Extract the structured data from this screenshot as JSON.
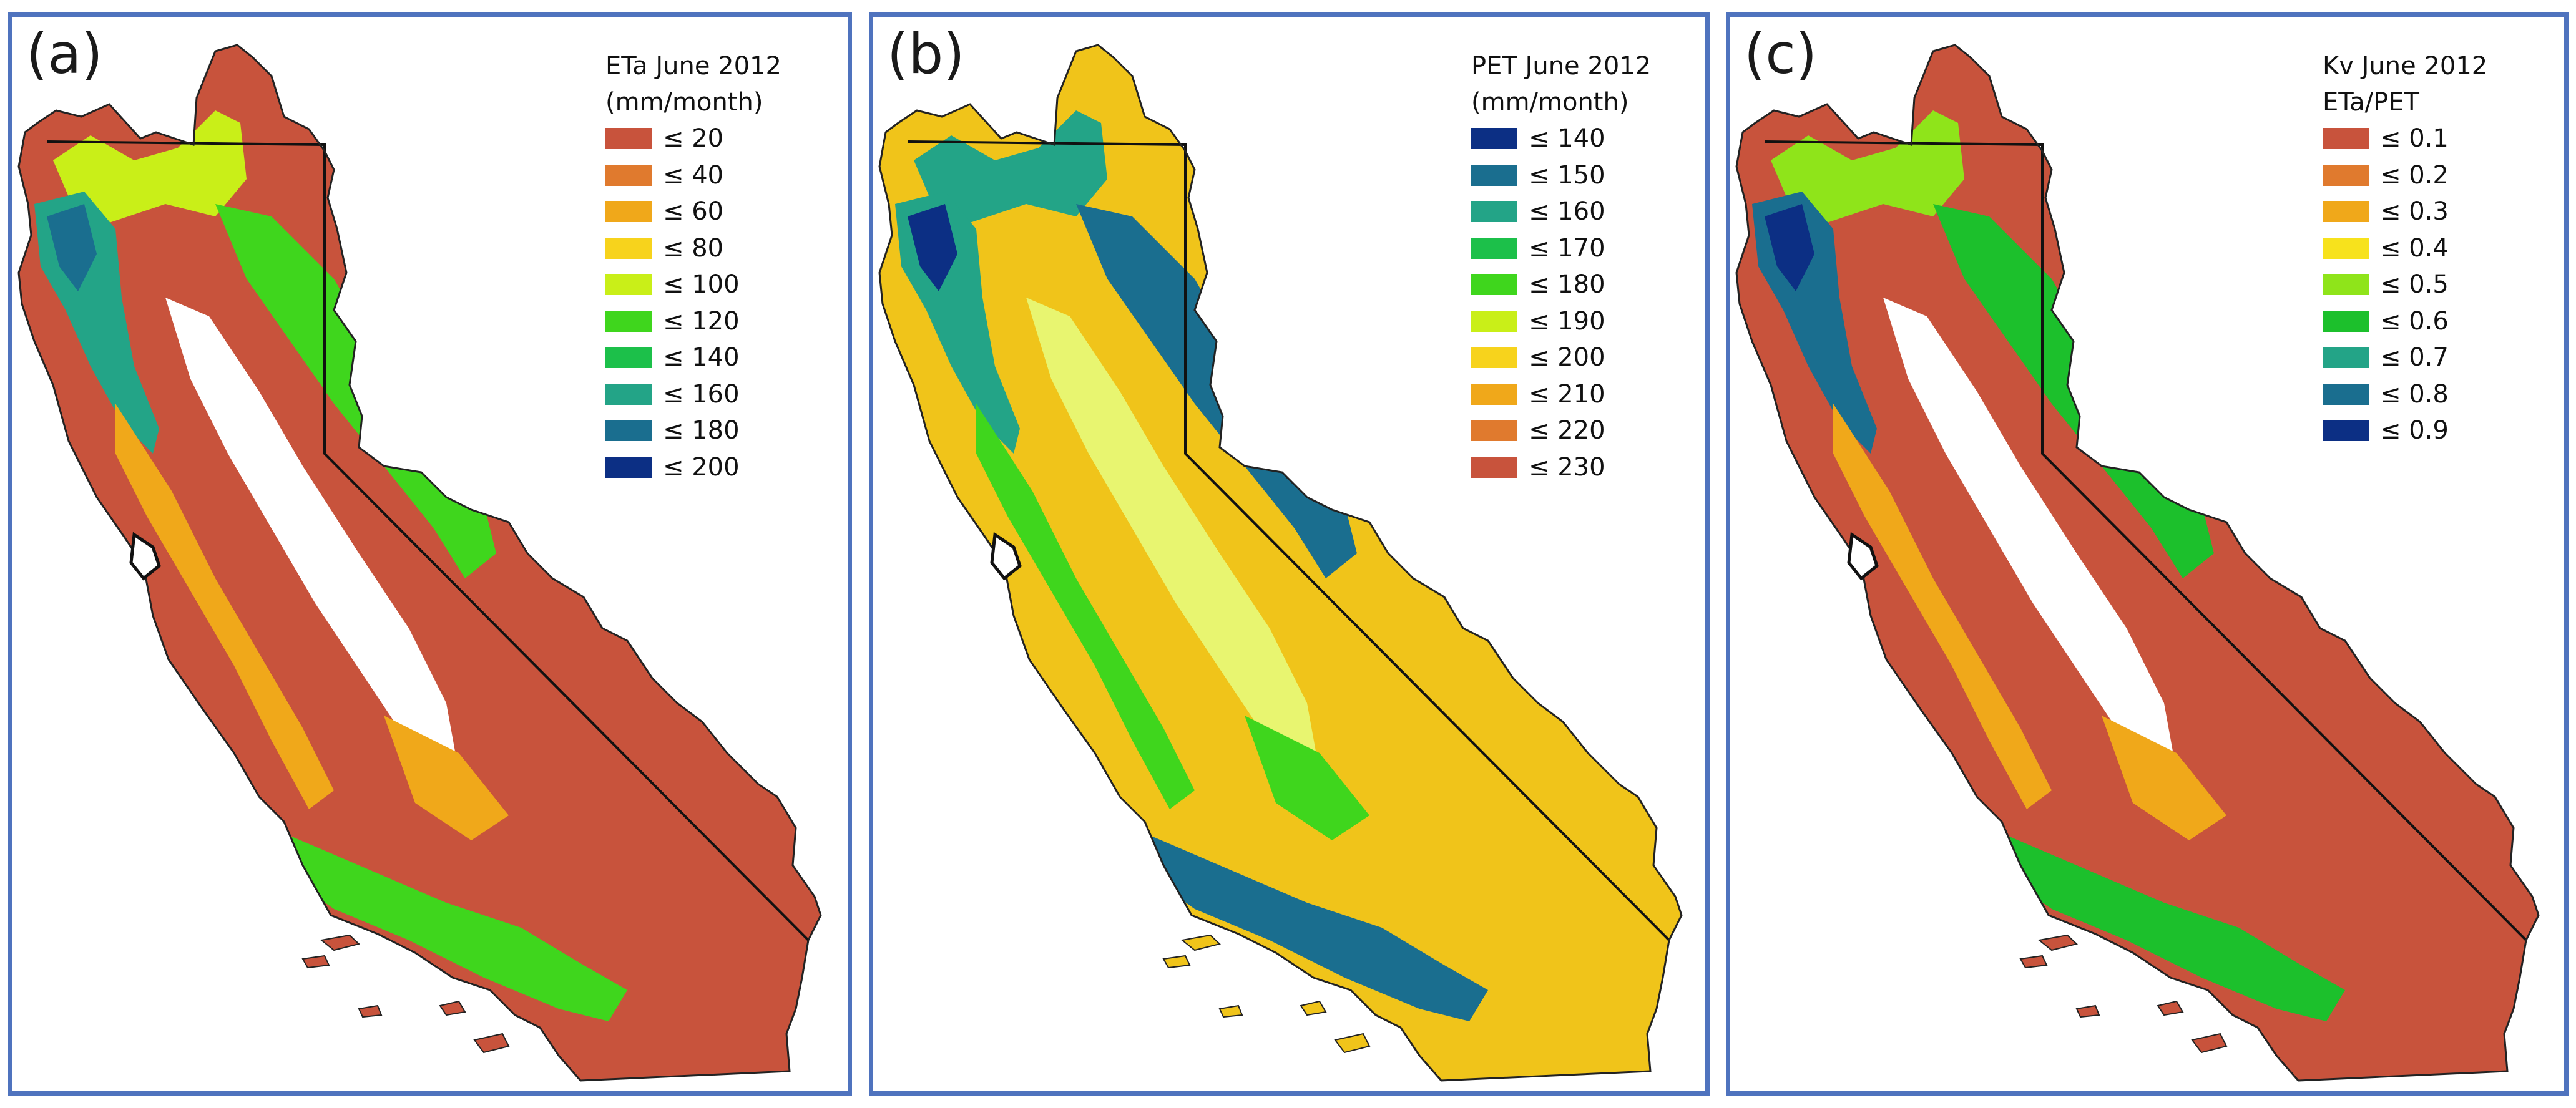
{
  "panels": [
    {
      "id": "a",
      "label": "(a)",
      "legend": {
        "title_line1": "ETa June 2012",
        "title_line2": "(mm/month)",
        "items": [
          {
            "label": "≤ 20",
            "color": "#c8533c"
          },
          {
            "label": "≤ 40",
            "color": "#e07a2e"
          },
          {
            "label": "≤ 60",
            "color": "#f0a81a"
          },
          {
            "label": "≤ 80",
            "color": "#f7d31c"
          },
          {
            "label": "≤ 100",
            "color": "#c9ef18"
          },
          {
            "label": "≤ 120",
            "color": "#3fd61d"
          },
          {
            "label": "≤ 140",
            "color": "#1cc04a"
          },
          {
            "label": "≤ 160",
            "color": "#23a487"
          },
          {
            "label": "≤ 180",
            "color": "#1a6e8f"
          },
          {
            "label": "≤ 200",
            "color": "#0c2f84"
          }
        ]
      },
      "map_colors": {
        "base": "#c8533c",
        "mid": "#f0a81a",
        "valley": "#ffffff",
        "mountain": "#3fd61d",
        "coast": "#23a487",
        "peak": "#1a6e8f",
        "north": "#c9ef18"
      }
    },
    {
      "id": "b",
      "label": "(b)",
      "legend": {
        "title_line1": "PET June 2012",
        "title_line2": "(mm/month)",
        "items": [
          {
            "label": "≤ 140",
            "color": "#0c2f84"
          },
          {
            "label": "≤ 150",
            "color": "#1a6e8f"
          },
          {
            "label": "≤ 160",
            "color": "#23a487"
          },
          {
            "label": "≤ 170",
            "color": "#1cc04a"
          },
          {
            "label": "≤ 180",
            "color": "#3fd61d"
          },
          {
            "label": "≤ 190",
            "color": "#c9ef18"
          },
          {
            "label": "≤ 200",
            "color": "#f7d31c"
          },
          {
            "label": "≤ 210",
            "color": "#f0a81a"
          },
          {
            "label": "≤ 220",
            "color": "#e07a2e"
          },
          {
            "label": "≤ 230",
            "color": "#c8533c"
          }
        ]
      },
      "map_colors": {
        "base": "#f0c41a",
        "mid": "#3fd61d",
        "valley": "#e8f570",
        "mountain": "#1a6e8f",
        "coast": "#23a487",
        "peak": "#0c2f84",
        "north": "#23a487"
      }
    },
    {
      "id": "c",
      "label": "(c)",
      "legend": {
        "title_line1": "Kv June 2012",
        "title_line2": "ETa/PET",
        "items": [
          {
            "label": "≤ 0.1",
            "color": "#c8533c"
          },
          {
            "label": "≤ 0.2",
            "color": "#e07a2e"
          },
          {
            "label": "≤ 0.3",
            "color": "#f0a81a"
          },
          {
            "label": "≤ 0.4",
            "color": "#f7e21c"
          },
          {
            "label": "≤ 0.5",
            "color": "#8fe41a"
          },
          {
            "label": "≤ 0.6",
            "color": "#1cc02c"
          },
          {
            "label": "≤ 0.7",
            "color": "#23a487"
          },
          {
            "label": "≤ 0.8",
            "color": "#1a6e8f"
          },
          {
            "label": "≤ 0.9",
            "color": "#0c2f84"
          }
        ]
      },
      "map_colors": {
        "base": "#c8533c",
        "mid": "#f0a81a",
        "valley": "#ffffff",
        "mountain": "#1cc02c",
        "coast": "#1a6e8f",
        "peak": "#0c2f84",
        "north": "#8fe41a"
      }
    }
  ]
}
